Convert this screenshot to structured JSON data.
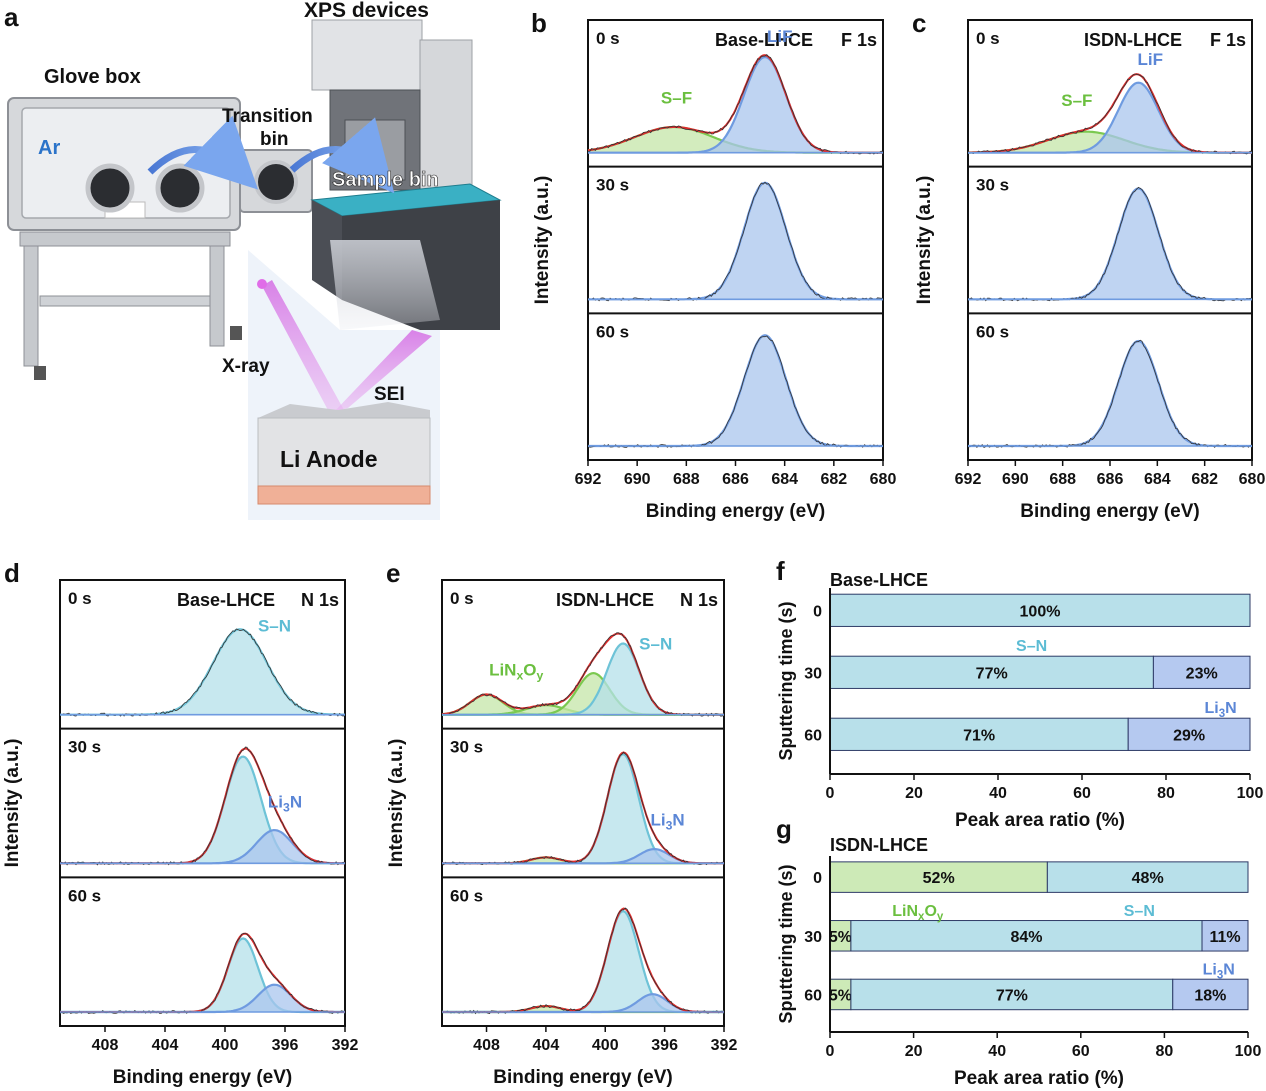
{
  "panel_letters": [
    "a",
    "b",
    "c",
    "d",
    "e",
    "f",
    "g"
  ],
  "schematic": {
    "glove_box": "Glove box",
    "ar": "Ar",
    "transition_bin": [
      "Transition",
      "bin"
    ],
    "xps_devices": "XPS devices",
    "sample_bin": "Sample bin",
    "xray": "X-ray",
    "sei": "SEI",
    "li_anode": "Li Anode"
  },
  "colors": {
    "blue": "#6f9be0",
    "blue_fill": "#a9c5ee",
    "cyan": "#6ec3d7",
    "cyan_fill": "#b4e0ea",
    "green": "#7bc950",
    "green_fill": "#c4e6a8",
    "envelope": "#e02c2c",
    "raw": "#333333",
    "bar_sn": "#b8e0ea",
    "bar_li3n": "#b5c9f0",
    "bar_linxoy": "#cdeab7",
    "sn_text": "#5cbcd4",
    "li3n_text": "#5b86d6",
    "linxoy_text": "#6bbf3f"
  },
  "chart_data": [
    {
      "id": "b",
      "type": "line",
      "title": "Base-LHCE",
      "core_level": "F 1s",
      "xlabel": "Binding energy (eV)",
      "ylabel": "Intensity (a.u.)",
      "xlim": [
        692,
        680
      ],
      "xticks": [
        692,
        690,
        688,
        686,
        684,
        682,
        680
      ],
      "subplots": [
        {
          "time": "0 s",
          "peaks": [
            {
              "name": "S–F",
              "center": 688.5,
              "height": 0.22,
              "width": 1.6,
              "color": "green"
            },
            {
              "name": "LiF",
              "center": 684.8,
              "height": 0.82,
              "width": 0.85,
              "color": "blue"
            }
          ],
          "labels": [
            {
              "text": "S–F",
              "x": 688.4,
              "y": 0.42,
              "color": "green"
            },
            {
              "text": "LiF",
              "x": 684.2,
              "y": 0.95,
              "color": "blue"
            }
          ]
        },
        {
          "time": "30 s",
          "peaks": [
            {
              "name": "LiF",
              "center": 684.8,
              "height": 1.0,
              "width": 0.85,
              "color": "blue"
            }
          ],
          "labels": []
        },
        {
          "time": "60 s",
          "peaks": [
            {
              "name": "LiF",
              "center": 684.8,
              "height": 0.95,
              "width": 0.85,
              "color": "blue"
            }
          ],
          "labels": []
        }
      ]
    },
    {
      "id": "c",
      "type": "line",
      "title": "ISDN-LHCE",
      "core_level": "F 1s",
      "xlabel": "Binding energy (eV)",
      "ylabel": "Intensity (a.u.)",
      "xlim": [
        692,
        680
      ],
      "xticks": [
        692,
        690,
        688,
        686,
        684,
        682,
        680
      ],
      "subplots": [
        {
          "time": "0 s",
          "peaks": [
            {
              "name": "S–F",
              "center": 687.0,
              "height": 0.18,
              "width": 1.6,
              "color": "green"
            },
            {
              "name": "LiF",
              "center": 684.8,
              "height": 0.6,
              "width": 0.85,
              "color": "blue"
            }
          ],
          "labels": [
            {
              "text": "S–F",
              "x": 687.4,
              "y": 0.4,
              "color": "green"
            },
            {
              "text": "LiF",
              "x": 684.3,
              "y": 0.75,
              "color": "blue"
            }
          ]
        },
        {
          "time": "30 s",
          "peaks": [
            {
              "name": "LiF",
              "center": 684.8,
              "height": 0.95,
              "width": 0.85,
              "color": "blue"
            }
          ],
          "labels": []
        },
        {
          "time": "60 s",
          "peaks": [
            {
              "name": "LiF",
              "center": 684.8,
              "height": 0.9,
              "width": 0.85,
              "color": "blue"
            }
          ],
          "labels": []
        }
      ]
    },
    {
      "id": "d",
      "type": "line",
      "title": "Base-LHCE",
      "core_level": "N 1s",
      "xlabel": "Binding energy (eV)",
      "ylabel": "Intensity (a.u.)",
      "xlim": [
        411,
        392
      ],
      "xticks": [
        408,
        404,
        400,
        396,
        392
      ],
      "subplots": [
        {
          "time": "0 s",
          "peaks": [
            {
              "name": "S–N",
              "center": 399.0,
              "height": 0.72,
              "width": 1.8,
              "color": "cyan"
            }
          ],
          "labels": [
            {
              "text": "S–N",
              "x": 396.7,
              "y": 0.7,
              "color": "cyan"
            }
          ]
        },
        {
          "time": "30 s",
          "peaks": [
            {
              "name": "S–N",
              "center": 398.8,
              "height": 0.9,
              "width": 1.2,
              "color": "cyan"
            },
            {
              "name": "Li3N",
              "center": 396.7,
              "height": 0.28,
              "width": 1.2,
              "color": "blue"
            }
          ],
          "labels": [
            {
              "text": "Li3N",
              "x": 396.0,
              "y": 0.47,
              "color": "blue"
            }
          ]
        },
        {
          "time": "60 s",
          "peaks": [
            {
              "name": "S–N",
              "center": 398.8,
              "height": 0.62,
              "width": 1.0,
              "color": "cyan"
            },
            {
              "name": "Li3N",
              "center": 396.7,
              "height": 0.23,
              "width": 1.1,
              "color": "blue"
            }
          ],
          "labels": []
        }
      ]
    },
    {
      "id": "e",
      "type": "line",
      "title": "ISDN-LHCE",
      "core_level": "N 1s",
      "xlabel": "Binding energy (eV)",
      "ylabel": "Intensity (a.u.)",
      "xlim": [
        411,
        392
      ],
      "xticks": [
        408,
        404,
        400,
        396,
        392
      ],
      "subplots": [
        {
          "time": "0 s",
          "peaks": [
            {
              "name": "LiNxOy",
              "center": 408.0,
              "height": 0.17,
              "width": 1.1,
              "color": "green"
            },
            {
              "name": "LiNxOy",
              "center": 404.0,
              "height": 0.08,
              "width": 1.3,
              "color": "green"
            },
            {
              "name": "LiNxOy",
              "center": 400.8,
              "height": 0.35,
              "width": 1.1,
              "color": "green"
            },
            {
              "name": "S–N",
              "center": 398.8,
              "height": 0.6,
              "width": 1.1,
              "color": "cyan"
            }
          ],
          "labels": [
            {
              "text": "LiNxOy",
              "x": 406.0,
              "y": 0.33,
              "color": "green"
            },
            {
              "text": "S–N",
              "x": 396.6,
              "y": 0.55,
              "color": "cyan"
            }
          ]
        },
        {
          "time": "30 s",
          "peaks": [
            {
              "name": "LiNxOy",
              "center": 404.0,
              "height": 0.05,
              "width": 1.0,
              "color": "green"
            },
            {
              "name": "S–N",
              "center": 398.8,
              "height": 0.92,
              "width": 1.05,
              "color": "cyan"
            },
            {
              "name": "Li3N",
              "center": 396.7,
              "height": 0.12,
              "width": 1.0,
              "color": "blue"
            }
          ],
          "labels": [
            {
              "text": "Li3N",
              "x": 395.8,
              "y": 0.32,
              "color": "blue"
            }
          ]
        },
        {
          "time": "60 s",
          "peaks": [
            {
              "name": "LiNxOy",
              "center": 404.0,
              "height": 0.05,
              "width": 1.0,
              "color": "green"
            },
            {
              "name": "S–N",
              "center": 398.8,
              "height": 0.85,
              "width": 1.05,
              "color": "cyan"
            },
            {
              "name": "Li3N",
              "center": 396.8,
              "height": 0.15,
              "width": 1.0,
              "color": "blue"
            }
          ],
          "labels": []
        }
      ]
    },
    {
      "id": "f",
      "type": "bar",
      "title": "Base-LHCE",
      "xlabel": "Peak area ratio (%)",
      "ylabel": "Sputtering time (s)",
      "xlim": [
        0,
        100
      ],
      "xticks": [
        0,
        20,
        40,
        60,
        80,
        100
      ],
      "categories": [
        "0",
        "30",
        "60"
      ],
      "series": [
        {
          "name": "LiNxOy",
          "color": "bar_linxoy",
          "values": [
            0,
            0,
            0
          ]
        },
        {
          "name": "S–N",
          "color": "bar_sn",
          "values": [
            100,
            77,
            71
          ]
        },
        {
          "name": "Li3N",
          "color": "bar_li3n",
          "values": [
            0,
            23,
            29
          ]
        }
      ],
      "bar_labels": [
        [
          "",
          "100%",
          ""
        ],
        [
          "",
          "77%",
          "23%"
        ],
        [
          "",
          "71%",
          "29%"
        ]
      ],
      "annotations": [
        {
          "text": "S–N",
          "x": 48,
          "between": 0,
          "color": "sn_text"
        },
        {
          "text": "Li3N",
          "x": 93,
          "between": 1,
          "color": "li3n_text"
        }
      ]
    },
    {
      "id": "g",
      "type": "bar",
      "title": "ISDN-LHCE",
      "xlabel": "Peak area ratio (%)",
      "ylabel": "Sputtering time (s)",
      "xlim": [
        0,
        100
      ],
      "xticks": [
        0,
        20,
        40,
        60,
        80,
        100
      ],
      "categories": [
        "0",
        "30",
        "60"
      ],
      "series": [
        {
          "name": "LiNxOy",
          "color": "bar_linxoy",
          "values": [
            52,
            5,
            5
          ]
        },
        {
          "name": "S–N",
          "color": "bar_sn",
          "values": [
            48,
            84,
            77
          ]
        },
        {
          "name": "Li3N",
          "color": "bar_li3n",
          "values": [
            0,
            11,
            18
          ]
        }
      ],
      "bar_labels": [
        [
          "52%",
          "48%",
          ""
        ],
        [
          "5%",
          "84%",
          "11%"
        ],
        [
          "5%",
          "77%",
          "18%"
        ]
      ],
      "annotations": [
        {
          "text": "LiNxOy",
          "x": 21,
          "between": 0,
          "color": "linxoy_text"
        },
        {
          "text": "S–N",
          "x": 74,
          "between": 0,
          "color": "sn_text"
        },
        {
          "text": "Li3N",
          "x": 93,
          "between": 1,
          "color": "li3n_text"
        }
      ]
    }
  ]
}
